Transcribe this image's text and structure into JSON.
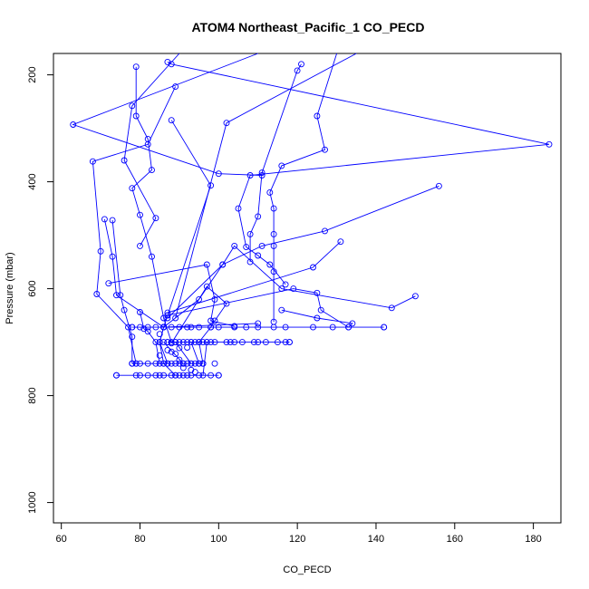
{
  "chart_data": {
    "type": "line",
    "title": "ATOM4 Northeast_Pacific_1 CO_PECD",
    "xlabel": "CO_PECD",
    "ylabel": "Pressure (mbar)",
    "xlim": [
      58,
      187
    ],
    "ylim": [
      1038,
      160
    ],
    "y_reversed": true,
    "grid": false,
    "legend": "none",
    "x_ticks": [
      60,
      80,
      100,
      120,
      140,
      160,
      180
    ],
    "y_ticks": [
      200,
      400,
      600,
      800,
      1000
    ],
    "series_color": "#0000ff",
    "series": [
      {
        "points": [
          [
            90,
            150
          ],
          [
            78,
            258
          ],
          [
            76,
            360
          ],
          [
            84,
            468
          ],
          [
            80,
            520
          ]
        ]
      },
      {
        "points": [
          [
            79,
            185
          ],
          [
            79,
            277
          ],
          [
            82,
            320
          ],
          [
            83,
            378
          ],
          [
            78,
            412
          ],
          [
            80,
            462
          ],
          [
            83,
            540
          ],
          [
            86,
            655
          ],
          [
            88,
            700
          ]
        ]
      },
      {
        "points": [
          [
            110,
            150
          ],
          [
            63,
            293
          ],
          [
            100,
            385
          ],
          [
            111,
            388
          ]
        ]
      },
      {
        "points": [
          [
            87,
            176
          ],
          [
            88,
            180
          ],
          [
            184,
            330
          ],
          [
            108,
            388
          ],
          [
            105,
            450
          ],
          [
            107,
            522
          ],
          [
            110,
            538
          ],
          [
            113,
            555
          ],
          [
            117,
            592
          ]
        ]
      },
      {
        "points": [
          [
            89,
            222
          ],
          [
            82,
            330
          ],
          [
            68,
            362
          ],
          [
            70,
            530
          ],
          [
            69,
            610
          ],
          [
            77,
            672
          ],
          [
            79,
            740
          ]
        ]
      },
      {
        "points": [
          [
            88,
            285
          ],
          [
            98,
            407
          ],
          [
            87,
            650
          ],
          [
            86,
            672
          ],
          [
            85,
            700
          ],
          [
            86,
            740
          ],
          [
            89,
            762
          ]
        ]
      },
      {
        "points": [
          [
            121,
            180
          ],
          [
            120,
            192
          ],
          [
            111,
            383
          ],
          [
            110,
            465
          ],
          [
            108,
            498
          ],
          [
            108,
            550
          ]
        ]
      },
      {
        "points": [
          [
            130,
            150
          ],
          [
            125,
            277
          ],
          [
            127,
            340
          ],
          [
            116,
            370
          ],
          [
            113,
            420
          ],
          [
            114,
            450
          ],
          [
            114,
            498
          ],
          [
            114,
            520
          ],
          [
            114,
            568
          ],
          [
            114,
            662
          ]
        ]
      },
      {
        "points": [
          [
            87,
            655
          ],
          [
            101,
            555
          ],
          [
            111,
            520
          ],
          [
            127,
            492
          ],
          [
            156,
            408
          ]
        ]
      },
      {
        "points": [
          [
            89,
            655
          ],
          [
            102,
            290
          ],
          [
            135,
            150
          ]
        ]
      },
      {
        "points": [
          [
            71,
            470
          ],
          [
            73,
            540
          ],
          [
            74,
            612
          ],
          [
            86,
            672
          ],
          [
            85,
            700
          ],
          [
            87,
            740
          ]
        ]
      },
      {
        "points": [
          [
            73,
            472
          ],
          [
            75,
            612
          ],
          [
            76,
            640
          ],
          [
            78,
            690
          ],
          [
            78,
            740
          ]
        ]
      },
      {
        "points": [
          [
            72,
            590
          ],
          [
            97,
            555
          ],
          [
            99,
            620
          ],
          [
            98,
            660
          ],
          [
            104,
            670
          ]
        ]
      },
      {
        "points": [
          [
            87,
            645
          ],
          [
            124,
            560
          ],
          [
            131,
            512
          ]
        ]
      },
      {
        "points": [
          [
            87,
            650
          ],
          [
            119,
            600
          ],
          [
            125,
            608
          ],
          [
            126,
            640
          ],
          [
            133,
            672
          ],
          [
            134,
            665
          ],
          [
            125,
            655
          ],
          [
            116,
            640
          ]
        ]
      },
      {
        "points": [
          [
            80,
            644
          ],
          [
            81,
            675
          ],
          [
            82,
            680
          ],
          [
            84,
            700
          ],
          [
            85,
            740
          ]
        ]
      },
      {
        "points": [
          [
            86,
            672
          ],
          [
            95,
            620
          ],
          [
            101,
            555
          ],
          [
            104,
            520
          ],
          [
            116,
            600
          ],
          [
            144,
            636
          ],
          [
            150,
            614
          ]
        ]
      },
      {
        "points": [
          [
            88,
            702
          ],
          [
            97,
            596
          ],
          [
            102,
            628
          ],
          [
            99,
            660
          ],
          [
            98,
            672
          ],
          [
            95,
            700
          ],
          [
            96,
            740
          ]
        ]
      },
      {
        "points": [
          [
            78,
            672
          ],
          [
            142,
            672
          ]
        ]
      },
      {
        "points": [
          [
            87,
            700
          ],
          [
            118,
            700
          ]
        ]
      },
      {
        "points": [
          [
            78,
            740
          ],
          [
            96,
            740
          ]
        ]
      },
      {
        "points": [
          [
            74,
            762
          ],
          [
            100,
            762
          ]
        ]
      },
      {
        "points": [
          [
            86,
            672
          ],
          [
            110,
            665
          ]
        ]
      },
      {
        "points": [
          [
            86,
            700
          ],
          [
            91,
            740
          ]
        ]
      },
      {
        "points": [
          [
            89,
            700
          ],
          [
            93,
            740
          ]
        ]
      },
      {
        "points": [
          [
            93,
            700
          ],
          [
            95,
            740
          ]
        ]
      },
      {
        "points": [
          [
            97,
            700
          ],
          [
            96,
            762
          ]
        ]
      }
    ],
    "extra_points": [
      [
        78,
        672
      ],
      [
        80,
        672
      ],
      [
        82,
        672
      ],
      [
        84,
        672
      ],
      [
        86,
        672
      ],
      [
        88,
        672
      ],
      [
        90,
        672
      ],
      [
        92,
        672
      ],
      [
        93,
        672
      ],
      [
        95,
        672
      ],
      [
        98,
        672
      ],
      [
        100,
        672
      ],
      [
        104,
        672
      ],
      [
        107,
        672
      ],
      [
        110,
        672
      ],
      [
        114,
        672
      ],
      [
        117,
        672
      ],
      [
        124,
        672
      ],
      [
        129,
        672
      ],
      [
        133,
        672
      ],
      [
        142,
        672
      ],
      [
        87,
        700
      ],
      [
        89,
        700
      ],
      [
        90,
        700
      ],
      [
        91,
        700
      ],
      [
        92,
        700
      ],
      [
        93,
        700
      ],
      [
        94,
        700
      ],
      [
        95,
        700
      ],
      [
        96,
        700
      ],
      [
        97,
        700
      ],
      [
        98,
        700
      ],
      [
        99,
        700
      ],
      [
        102,
        700
      ],
      [
        103,
        700
      ],
      [
        104,
        700
      ],
      [
        106,
        700
      ],
      [
        109,
        700
      ],
      [
        110,
        700
      ],
      [
        112,
        700
      ],
      [
        115,
        700
      ],
      [
        117,
        700
      ],
      [
        118,
        700
      ],
      [
        78,
        740
      ],
      [
        79,
        740
      ],
      [
        80,
        740
      ],
      [
        82,
        740
      ],
      [
        84,
        740
      ],
      [
        86,
        740
      ],
      [
        87,
        740
      ],
      [
        88,
        740
      ],
      [
        89,
        740
      ],
      [
        90,
        740
      ],
      [
        91,
        740
      ],
      [
        92,
        740
      ],
      [
        93,
        740
      ],
      [
        94,
        740
      ],
      [
        95,
        740
      ],
      [
        96,
        740
      ],
      [
        99,
        740
      ],
      [
        74,
        762
      ],
      [
        79,
        762
      ],
      [
        80,
        762
      ],
      [
        82,
        762
      ],
      [
        84,
        762
      ],
      [
        85,
        762
      ],
      [
        86,
        762
      ],
      [
        88,
        762
      ],
      [
        89,
        762
      ],
      [
        90,
        762
      ],
      [
        91,
        762
      ],
      [
        92,
        762
      ],
      [
        93,
        762
      ],
      [
        95,
        762
      ],
      [
        98,
        762
      ],
      [
        100,
        762
      ],
      [
        85,
        685
      ],
      [
        88,
        718
      ],
      [
        89,
        722
      ],
      [
        90,
        733
      ],
      [
        91,
        748
      ],
      [
        93,
        752
      ],
      [
        94,
        756
      ],
      [
        92,
        710
      ],
      [
        87,
        715
      ],
      [
        90,
        711
      ],
      [
        85,
        725
      ]
    ]
  }
}
